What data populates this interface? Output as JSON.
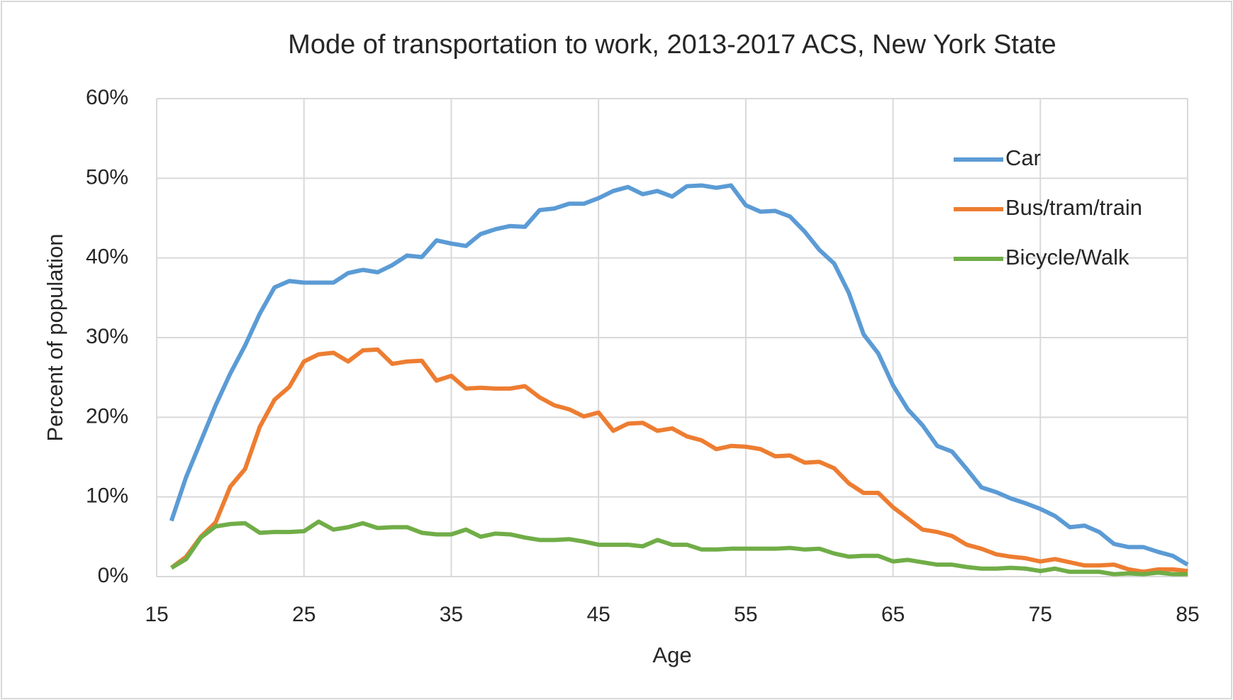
{
  "chart_data": {
    "type": "line",
    "title": "Mode of transportation to work, 2013-2017 ACS, New York State",
    "xlabel": "Age",
    "ylabel": "Percent of population",
    "x": [
      16,
      17,
      18,
      19,
      20,
      21,
      22,
      23,
      24,
      25,
      26,
      27,
      28,
      29,
      30,
      31,
      32,
      33,
      34,
      35,
      36,
      37,
      38,
      39,
      40,
      41,
      42,
      43,
      44,
      45,
      46,
      47,
      48,
      49,
      50,
      51,
      52,
      53,
      54,
      55,
      56,
      57,
      58,
      59,
      60,
      61,
      62,
      63,
      64,
      65,
      66,
      67,
      68,
      69,
      70,
      71,
      72,
      73,
      74,
      75,
      76,
      77,
      78,
      79,
      80,
      81,
      82,
      83,
      84,
      85
    ],
    "series": [
      {
        "name": "Car",
        "color": "#5b9bd5",
        "values": [
          7,
          12.5,
          17,
          21.5,
          25.5,
          29,
          33,
          36.3,
          37.1,
          36.9,
          36.9,
          36.9,
          38.1,
          38.5,
          38.2,
          39.1,
          40.3,
          40.1,
          42.2,
          41.8,
          41.5,
          43,
          43.6,
          44,
          43.9,
          46,
          46.2,
          46.8,
          46.8,
          47.5,
          48.4,
          48.9,
          48,
          48.4,
          47.7,
          49,
          49.1,
          48.8,
          49.1,
          46.6,
          45.8,
          45.9,
          45.2,
          43.3,
          41,
          39.3,
          35.6,
          30.4,
          28,
          24,
          21,
          19,
          16.4,
          15.7,
          13.5,
          11.2,
          10.6,
          9.8,
          9.2,
          8.5,
          7.6,
          6.2,
          6.4,
          5.6,
          4.1,
          3.7,
          3.7,
          3.1,
          2.6,
          1.5
        ]
      },
      {
        "name": "Bus/tram/train",
        "color": "#ed7d31",
        "values": [
          1.1,
          2.5,
          5,
          6.8,
          11.3,
          13.5,
          18.8,
          22.2,
          23.8,
          27,
          27.9,
          28.1,
          27,
          28.4,
          28.5,
          26.7,
          27,
          27.1,
          24.6,
          25.2,
          23.6,
          23.7,
          23.6,
          23.6,
          23.9,
          22.5,
          21.5,
          21,
          20.1,
          20.6,
          18.3,
          19.2,
          19.3,
          18.3,
          18.6,
          17.6,
          17.1,
          16,
          16.4,
          16.3,
          16,
          15.1,
          15.2,
          14.3,
          14.4,
          13.6,
          11.7,
          10.5,
          10.5,
          8.7,
          7.3,
          5.9,
          5.6,
          5.1,
          4,
          3.5,
          2.8,
          2.5,
          2.3,
          1.9,
          2.2,
          1.8,
          1.4,
          1.4,
          1.5,
          0.9,
          0.6,
          0.9,
          0.9,
          0.7
        ]
      },
      {
        "name": "Bicycle/Walk",
        "color": "#70ad47",
        "values": [
          1.1,
          2.2,
          4.9,
          6.3,
          6.6,
          6.7,
          5.5,
          5.6,
          5.6,
          5.7,
          6.9,
          5.9,
          6.2,
          6.7,
          6.1,
          6.2,
          6.2,
          5.5,
          5.3,
          5.3,
          5.9,
          5,
          5.4,
          5.3,
          4.9,
          4.6,
          4.6,
          4.7,
          4.4,
          4,
          4,
          4,
          3.8,
          4.6,
          4,
          4,
          3.4,
          3.4,
          3.5,
          3.5,
          3.5,
          3.5,
          3.6,
          3.4,
          3.5,
          2.9,
          2.5,
          2.6,
          2.6,
          1.9,
          2.1,
          1.8,
          1.5,
          1.5,
          1.2,
          1,
          1,
          1.1,
          1,
          0.7,
          1,
          0.6,
          0.6,
          0.6,
          0.3,
          0.4,
          0.3,
          0.5,
          0.3,
          0.3
        ]
      }
    ],
    "xlim": [
      15,
      85
    ],
    "xticks": [
      15,
      25,
      35,
      45,
      55,
      65,
      75,
      85
    ],
    "ylim": [
      0,
      60
    ],
    "yticks": [
      {
        "value": 0,
        "label": "0%"
      },
      {
        "value": 10,
        "label": "10%"
      },
      {
        "value": 20,
        "label": "20%"
      },
      {
        "value": 30,
        "label": "30%"
      },
      {
        "value": 40,
        "label": "40%"
      },
      {
        "value": 50,
        "label": "50%"
      },
      {
        "value": 60,
        "label": "60%"
      }
    ],
    "grid": true,
    "legend": "upper right"
  }
}
